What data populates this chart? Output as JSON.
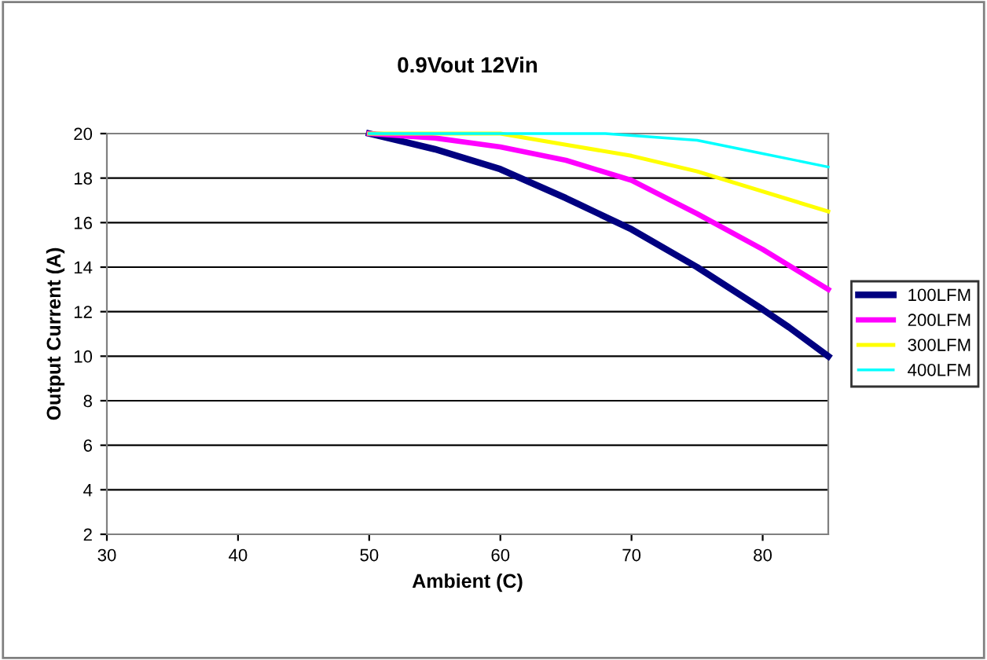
{
  "chart_data": {
    "type": "line",
    "title": "0.9Vout 12Vin",
    "xlabel": "Ambient (C)",
    "ylabel": "Output Current (A)",
    "xlim": [
      30,
      85
    ],
    "xticks": [
      30,
      40,
      50,
      60,
      70,
      80
    ],
    "ylim": [
      2,
      20
    ],
    "yticks": [
      2,
      4,
      6,
      8,
      10,
      12,
      14,
      16,
      18,
      20
    ],
    "grid": "y",
    "legend": "right",
    "marker": "none",
    "line_style": "solid",
    "series": [
      {
        "name": "100LFM",
        "color": "#000080",
        "x": [
          50,
          55,
          60,
          65,
          70,
          75,
          80,
          82,
          85
        ],
        "values": [
          20,
          19.3,
          18.4,
          17.1,
          15.7,
          14.0,
          12.1,
          11.3,
          10.0
        ]
      },
      {
        "name": "200LFM",
        "color": "#ff00ff",
        "x": [
          50,
          55,
          60,
          65,
          70,
          75,
          80,
          85
        ],
        "values": [
          20,
          19.8,
          19.4,
          18.8,
          17.9,
          16.4,
          14.8,
          13.0
        ]
      },
      {
        "name": "300LFM",
        "color": "#ffff00",
        "x": [
          50,
          60,
          65,
          70,
          75,
          80,
          85
        ],
        "values": [
          20,
          20,
          19.5,
          19.0,
          18.3,
          17.4,
          16.5
        ]
      },
      {
        "name": "400LFM",
        "color": "#00ffff",
        "x": [
          50,
          68,
          75,
          80,
          85
        ],
        "values": [
          20,
          20,
          19.7,
          19.1,
          18.5
        ]
      }
    ]
  }
}
